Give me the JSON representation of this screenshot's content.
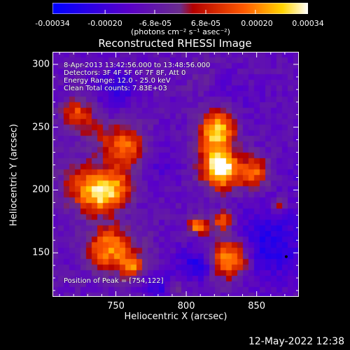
{
  "colorbar": {
    "tick_labels": [
      "-0.00034",
      "-0.00020",
      "-6.8e-05",
      "6.8e-05",
      "0.00020",
      "0.00034"
    ],
    "tick_values": [
      -0.00034,
      -0.0002,
      -6.8e-05,
      6.8e-05,
      0.0002,
      0.00034
    ],
    "range": [
      -0.00034,
      0.00034
    ],
    "unit_label": "(photons cm⁻² s⁻¹ asec⁻²)",
    "colors": [
      "#0000ff",
      "#5a00c8",
      "#6a2d8c",
      "#b40000",
      "#ff5a00",
      "#ffd400",
      "#ffffff"
    ]
  },
  "chart_data": {
    "type": "heatmap",
    "title": "Reconstructed RHESSI Image",
    "xlabel": "Heliocentric X (arcsec)",
    "ylabel": "Heliocentric Y (arcsec)",
    "xlim": [
      705,
      880
    ],
    "ylim": [
      115,
      310
    ],
    "x_ticks": [
      750,
      800,
      850
    ],
    "y_ticks": [
      150,
      200,
      250,
      300
    ],
    "annotations": [
      "8-Apr-2013 13:42:56.000 to 13:48:56.000",
      "Detectors: 3F 4F 5F 6F 7F 8F, Att 0",
      "Energy Range: 12.0 - 25.0 keV",
      "Clean     Total counts: 7.83E+03"
    ],
    "peak_label": "Position of Peak = [754,122]",
    "peak": [
      754,
      122
    ],
    "value_range": [
      -0.00034,
      0.00034
    ]
  },
  "timestamp": "12-May-2022 12:38"
}
